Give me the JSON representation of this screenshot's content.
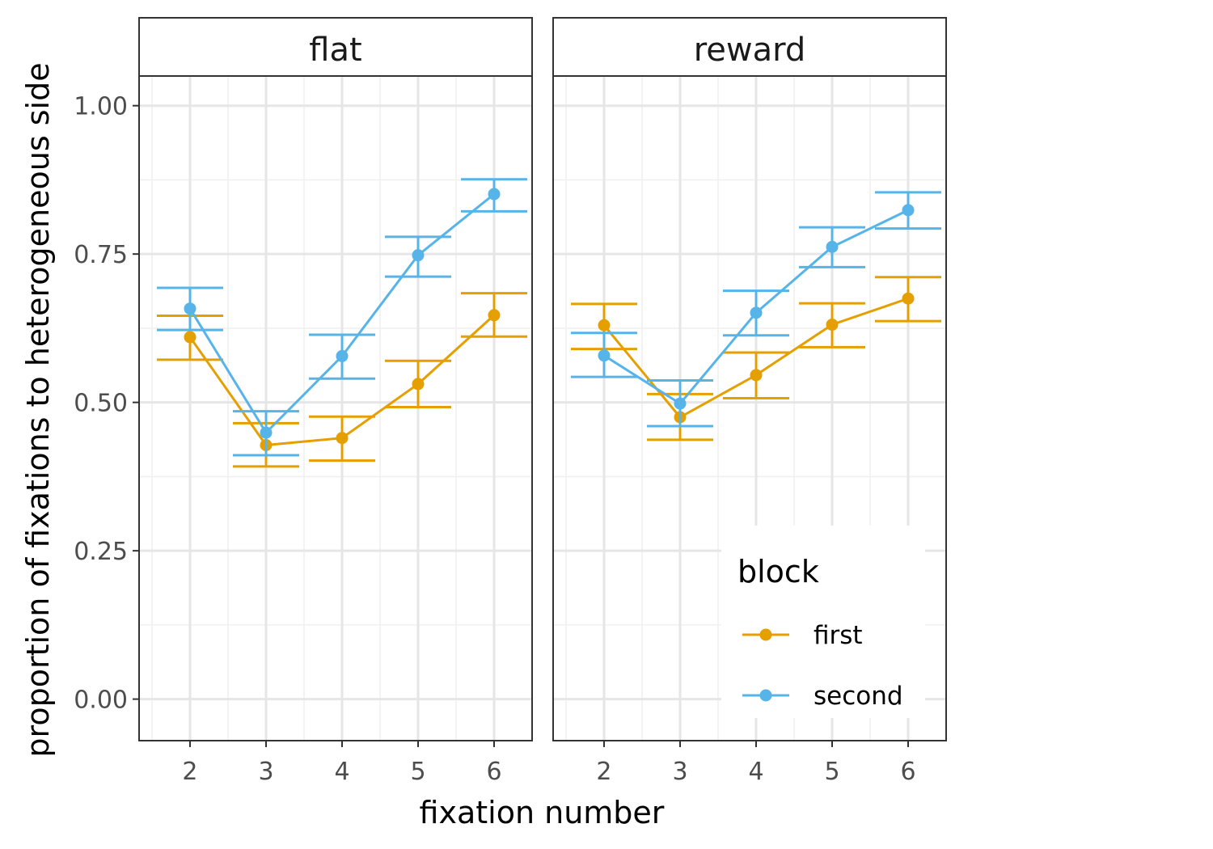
{
  "chart_data": {
    "type": "line",
    "error_bars": true,
    "xlabel": "fixation number",
    "ylabel": "proportion of fixations to heterogeneous side",
    "x": [
      2,
      3,
      4,
      5,
      6
    ],
    "x_tick_labels": [
      "2",
      "3",
      "4",
      "5",
      "6"
    ],
    "ylim": [
      -0.07,
      1.05
    ],
    "y_ticks": [
      0.0,
      0.25,
      0.5,
      0.75,
      1.0
    ],
    "y_tick_labels": [
      "0.00",
      "0.25",
      "0.50",
      "0.75",
      "1.00"
    ],
    "grid": true,
    "legend": {
      "title": "block",
      "placement": "inside bottom-right of reward panel",
      "entries": [
        {
          "label": "first",
          "color": "#E69F00"
        },
        {
          "label": "second",
          "color": "#56B4E9"
        }
      ]
    },
    "panels": [
      {
        "title": "flat",
        "series": [
          {
            "name": "first",
            "color": "#E69F00",
            "values": [
              0.61,
              0.428,
              0.44,
              0.531,
              0.647
            ],
            "lower": [
              0.572,
              0.392,
              0.402,
              0.492,
              0.611
            ],
            "upper": [
              0.646,
              0.465,
              0.476,
              0.57,
              0.684
            ]
          },
          {
            "name": "second",
            "color": "#56B4E9",
            "values": [
              0.658,
              0.449,
              0.578,
              0.748,
              0.851
            ],
            "lower": [
              0.622,
              0.411,
              0.54,
              0.712,
              0.822
            ],
            "upper": [
              0.693,
              0.485,
              0.614,
              0.779,
              0.876
            ]
          }
        ]
      },
      {
        "title": "reward",
        "series": [
          {
            "name": "first",
            "color": "#E69F00",
            "values": [
              0.63,
              0.475,
              0.546,
              0.631,
              0.675
            ],
            "lower": [
              0.59,
              0.437,
              0.507,
              0.593,
              0.637
            ],
            "upper": [
              0.666,
              0.514,
              0.584,
              0.667,
              0.711
            ]
          },
          {
            "name": "second",
            "color": "#56B4E9",
            "values": [
              0.579,
              0.498,
              0.651,
              0.762,
              0.824
            ],
            "lower": [
              0.543,
              0.46,
              0.613,
              0.728,
              0.793
            ],
            "upper": [
              0.617,
              0.537,
              0.688,
              0.795,
              0.854
            ]
          }
        ]
      }
    ]
  }
}
